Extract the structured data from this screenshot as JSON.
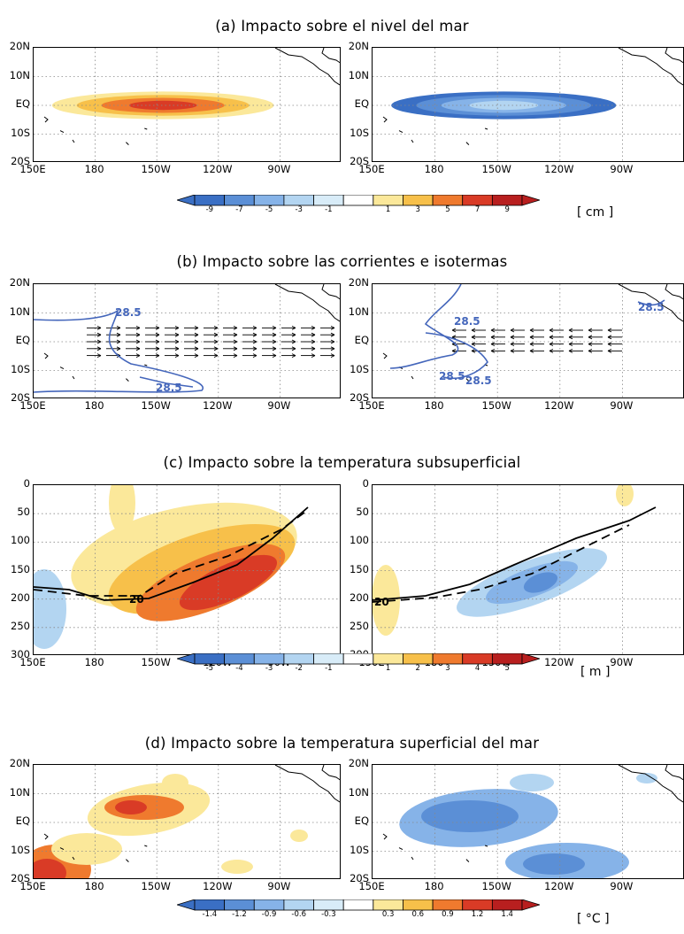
{
  "sections": [
    {
      "title": "(a) Impacto sobre el nivel del mar",
      "colorbar": {
        "labels": [
          "-9",
          "-7",
          "-5",
          "-3",
          "-1",
          "1",
          "3",
          "5",
          "7",
          "9"
        ],
        "units": "[ cm ]"
      }
    },
    {
      "title": "(b) Impacto sobre las corrientes e isotermas"
    },
    {
      "title": "(c) Impacto sobre la temperatura subsuperficial",
      "colorbar": {
        "labels": [
          "-5",
          "-4",
          "-3",
          "-2",
          "-1",
          "1",
          "2",
          "3",
          "4",
          "5"
        ],
        "units": "[ m ]"
      }
    },
    {
      "title": "(d) Impacto sobre la temperatura superficial del mar",
      "colorbar": {
        "labels": [
          "-1.4",
          "-1.2",
          "-0.9",
          "-0.6",
          "-0.3",
          "0.3",
          "0.6",
          "0.9",
          "1.2",
          "1.4"
        ],
        "units": "[ °C ]"
      }
    }
  ],
  "colors": {
    "negative": [
      "#3a6fc4",
      "#5b8fd6",
      "#86b3e8",
      "#b3d5f1",
      "#d8ecf8"
    ],
    "positive": [
      "#fbe89a",
      "#f7c04a",
      "#ef7a2e",
      "#d93b26",
      "#b81f1f"
    ],
    "contour": "#4466bb"
  },
  "chart_data": [
    {
      "panel": "a-left",
      "type": "heatmap",
      "xlabels": [
        "150E",
        "180",
        "150W",
        "120W",
        "90W"
      ],
      "ylabels": [
        "20N",
        "10N",
        "EQ",
        "10S",
        "20S"
      ],
      "feature": "positive sea-level anomaly centered at 150W on the equator",
      "peak_cm": 7
    },
    {
      "panel": "a-right",
      "type": "heatmap",
      "xlabels": [
        "150E",
        "180",
        "150W",
        "120W",
        "90W"
      ],
      "ylabels": [
        "20N",
        "10N",
        "EQ",
        "10S",
        "20S"
      ],
      "feature": "negative sea-level anomaly centered at 150W on the equator",
      "peak_cm": -7
    },
    {
      "panel": "b-left",
      "type": "vector",
      "xlabels": [
        "150E",
        "180",
        "150W",
        "120W",
        "90W"
      ],
      "ylabels": [
        "20N",
        "10N",
        "EQ",
        "10S",
        "20S"
      ],
      "isotherm_labels": [
        "28.5",
        "28.5"
      ],
      "current_direction": "eastward"
    },
    {
      "panel": "b-right",
      "type": "vector",
      "xlabels": [
        "150E",
        "180",
        "150W",
        "120W",
        "90W"
      ],
      "ylabels": [
        "20N",
        "10N",
        "EQ",
        "10S",
        "20S"
      ],
      "isotherm_labels": [
        "28.5",
        "28.5",
        "28.5",
        "28.5"
      ],
      "current_direction": "westward"
    },
    {
      "panel": "c-left",
      "type": "heatmap",
      "xlabels": [
        "150E",
        "180",
        "150W",
        "120W",
        "90W"
      ],
      "ylabels": [
        "0",
        "50",
        "100",
        "150",
        "200",
        "250",
        "300"
      ],
      "isotherm_label": "20",
      "peak_m": 5
    },
    {
      "panel": "c-right",
      "type": "heatmap",
      "xlabels": [
        "150E",
        "180",
        "150W",
        "120W",
        "90W"
      ],
      "ylabels": [
        "0",
        "50",
        "100",
        "150",
        "200",
        "250",
        "300"
      ],
      "isotherm_label": "20",
      "peak_m": -4
    },
    {
      "panel": "d-left",
      "type": "heatmap",
      "xlabels": [
        "150E",
        "180",
        "150W",
        "120W",
        "90W"
      ],
      "ylabels": [
        "20N",
        "10N",
        "EQ",
        "10S",
        "20S"
      ],
      "peak_c": 1.2
    },
    {
      "panel": "d-right",
      "type": "heatmap",
      "xlabels": [
        "150E",
        "180",
        "150W",
        "120W",
        "90W"
      ],
      "ylabels": [
        "20N",
        "10N",
        "EQ",
        "10S",
        "20S"
      ],
      "peak_c": -1.2
    }
  ]
}
